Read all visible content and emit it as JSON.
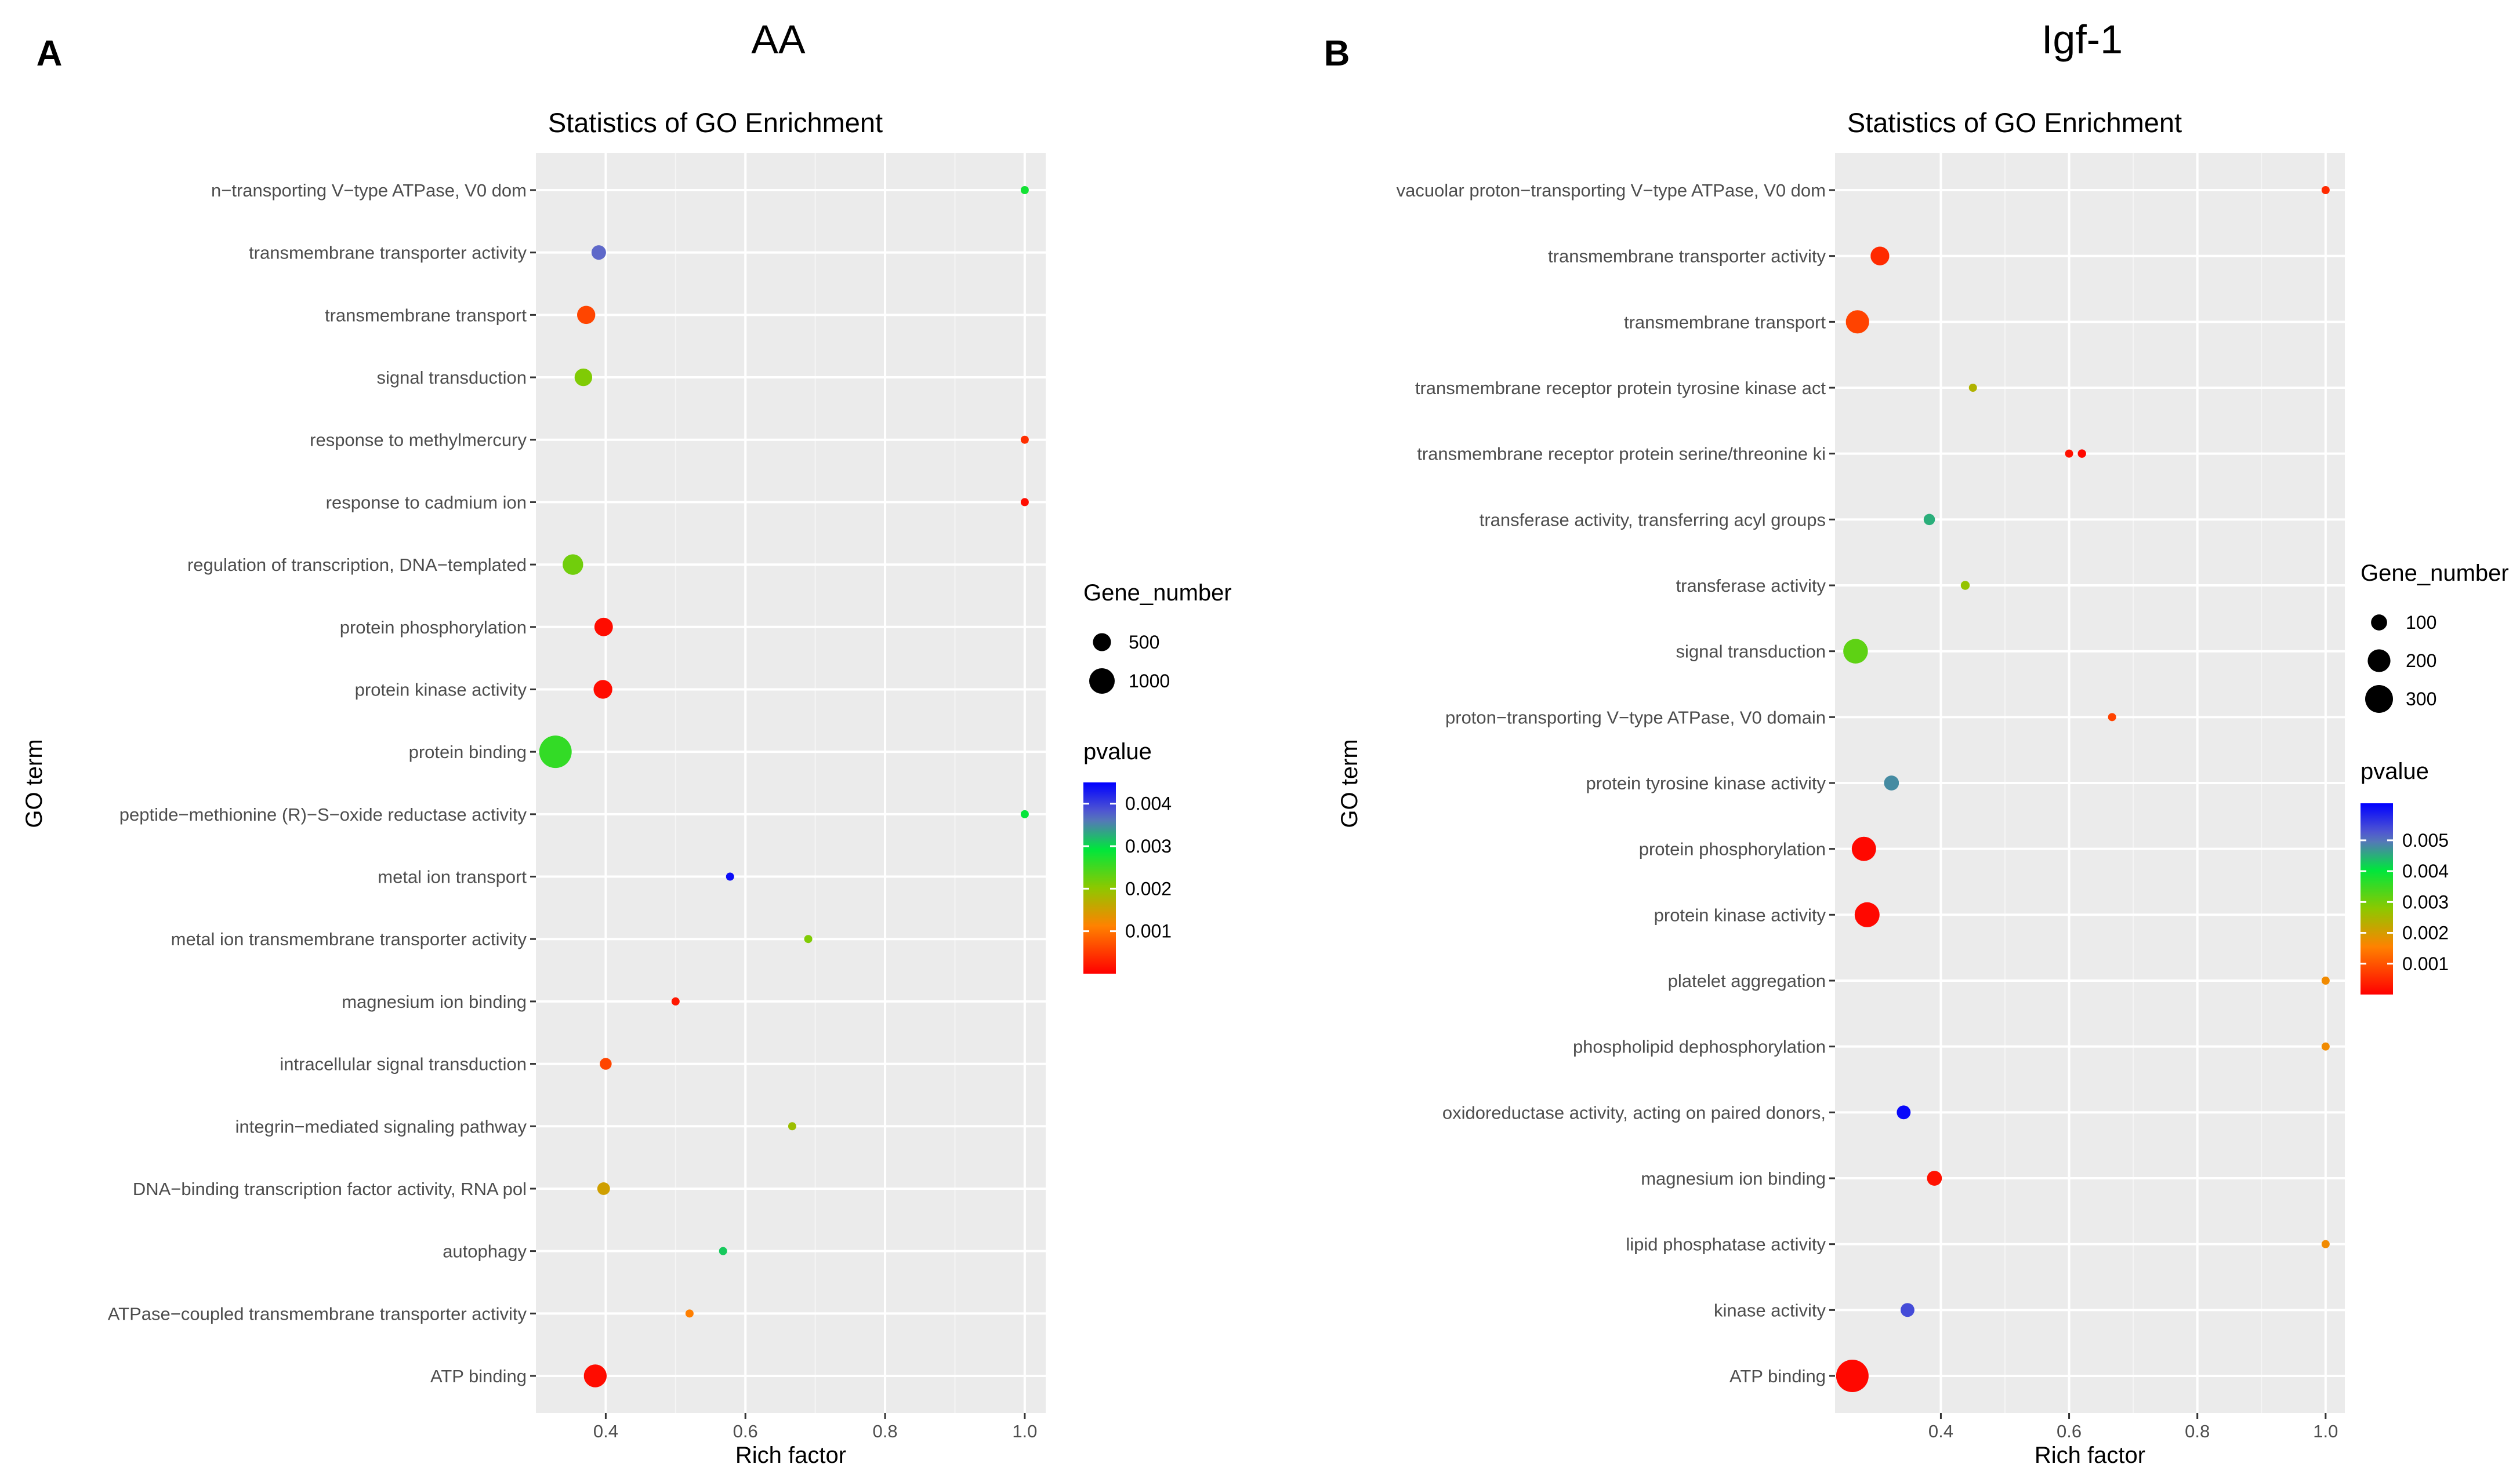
{
  "chart_data": [
    {
      "type": "scatter",
      "panel_label": "A",
      "panel_title": "AA",
      "title": "Statistics of GO Enrichment",
      "xlabel": "Rich factor",
      "ylabel": "GO term",
      "xlim": [
        0.3,
        1.03
      ],
      "xticks": [
        0.4,
        0.6,
        0.8,
        1.0
      ],
      "xtick_labels": [
        "0.4",
        "0.6",
        "0.8",
        "1.0"
      ],
      "size_legend": {
        "title": "Gene_number",
        "values": [
          500,
          1000
        ],
        "labels": [
          "500",
          "1000"
        ]
      },
      "color_legend": {
        "title": "pvalue",
        "min": 0,
        "max": 0.0045,
        "ticks": [
          0.004,
          0.003,
          0.002,
          0.001
        ],
        "labels": [
          "0.004",
          "0.003",
          "0.002",
          "0.001"
        ]
      },
      "points": [
        {
          "term": "n−transporting V−type ATPase, V0 dom",
          "rich": 1.0,
          "genes": 12,
          "pvalue": 0.0028
        },
        {
          "term": "transmembrane transporter activity",
          "rich": 0.39,
          "genes": 210,
          "pvalue": 0.0037
        },
        {
          "term": "transmembrane transport",
          "rich": 0.372,
          "genes": 330,
          "pvalue": 0.0006
        },
        {
          "term": "signal transduction",
          "rich": 0.368,
          "genes": 310,
          "pvalue": 0.0021
        },
        {
          "term": "response to methylmercury",
          "rich": 1.0,
          "genes": 12,
          "pvalue": 0.0004
        },
        {
          "term": "response to cadmium ion",
          "rich": 1.0,
          "genes": 12,
          "pvalue": 0.0001
        },
        {
          "term": "regulation of transcription, DNA−templated",
          "rich": 0.353,
          "genes": 420,
          "pvalue": 0.0022
        },
        {
          "term": "protein phosphorylation",
          "rich": 0.397,
          "genes": 340,
          "pvalue": 0.0001
        },
        {
          "term": "protein kinase activity",
          "rich": 0.396,
          "genes": 350,
          "pvalue": 0.0001
        },
        {
          "term": "protein binding",
          "rich": 0.328,
          "genes": 1050,
          "pvalue": 0.0026
        },
        {
          "term": "peptide−methionine (R)−S−oxide reductase activity",
          "rich": 1.0,
          "genes": 12,
          "pvalue": 0.0029
        },
        {
          "term": "metal ion transport",
          "rich": 0.578,
          "genes": 22,
          "pvalue": 0.0044
        },
        {
          "term": "metal ion transmembrane transporter activity",
          "rich": 0.69,
          "genes": 25,
          "pvalue": 0.0021
        },
        {
          "term": "magnesium ion binding",
          "rich": 0.5,
          "genes": 50,
          "pvalue": 0.0002
        },
        {
          "term": "intracellular signal transduction",
          "rich": 0.4,
          "genes": 140,
          "pvalue": 0.0006
        },
        {
          "term": "integrin−mediated signaling pathway",
          "rich": 0.667,
          "genes": 25,
          "pvalue": 0.0019
        },
        {
          "term": "DNA−binding transcription factor activity, RNA pol",
          "rich": 0.397,
          "genes": 160,
          "pvalue": 0.0015
        },
        {
          "term": "autophagy",
          "rich": 0.568,
          "genes": 50,
          "pvalue": 0.0031
        },
        {
          "term": "ATPase−coupled transmembrane transporter activity",
          "rich": 0.52,
          "genes": 55,
          "pvalue": 0.0011
        },
        {
          "term": "ATP binding",
          "rich": 0.385,
          "genes": 520,
          "pvalue": 0.0001
        }
      ]
    },
    {
      "type": "scatter",
      "panel_label": "B",
      "panel_title": "Igf-1",
      "title": "Statistics of GO Enrichment",
      "xlabel": "Rich factor",
      "ylabel": "GO term",
      "xlim": [
        0.235,
        1.03
      ],
      "xticks": [
        0.4,
        0.6,
        0.8,
        1.0
      ],
      "xtick_labels": [
        "0.4",
        "0.6",
        "0.8",
        "1.0"
      ],
      "size_legend": {
        "title": "Gene_number",
        "values": [
          100,
          200,
          300
        ],
        "labels": [
          "100",
          "200",
          "300"
        ]
      },
      "color_legend": {
        "title": "pvalue",
        "min": 0,
        "max": 0.0062,
        "ticks": [
          0.005,
          0.004,
          0.003,
          0.002,
          0.001
        ],
        "labels": [
          "0.005",
          "0.004",
          "0.003",
          "0.002",
          "0.001"
        ]
      },
      "points": [
        {
          "term": "vacuolar proton−transporting V−type ATPase, V0 dom",
          "rich": 1.0,
          "genes": 3,
          "pvalue": 0.0005
        },
        {
          "term": "transmembrane transporter activity",
          "rich": 0.305,
          "genes": 110,
          "pvalue": 0.0005
        },
        {
          "term": "transmembrane transport",
          "rich": 0.27,
          "genes": 170,
          "pvalue": 0.0008
        },
        {
          "term": "transmembrane receptor protein tyrosine kinase act",
          "rich": 0.45,
          "genes": 20,
          "pvalue": 0.0024
        },
        {
          "term": "transmembrane receptor protein serine/threonine ki",
          "rich": 0.6,
          "genes": 20,
          "pvalue": 0.0002
        },
        {
          "term": "transmembrane receptor protein serine/threonine ki",
          "rich": 0.62,
          "genes": 22,
          "pvalue": 0.0001
        },
        {
          "term": "transferase activity, transferring acyl groups",
          "rich": 0.382,
          "genes": 40,
          "pvalue": 0.0045
        },
        {
          "term": "transferase activity",
          "rich": 0.438,
          "genes": 25,
          "pvalue": 0.0027
        },
        {
          "term": "signal transduction",
          "rich": 0.267,
          "genes": 190,
          "pvalue": 0.0032
        },
        {
          "term": "proton−transporting V−type ATPase, V0 domain",
          "rich": 0.667,
          "genes": 12,
          "pvalue": 0.0008
        },
        {
          "term": "protein tyrosine kinase activity",
          "rich": 0.323,
          "genes": 70,
          "pvalue": 0.0048
        },
        {
          "term": "protein phosphorylation",
          "rich": 0.28,
          "genes": 185,
          "pvalue": 0.0001
        },
        {
          "term": "protein kinase activity",
          "rich": 0.285,
          "genes": 195,
          "pvalue": 0.0001
        },
        {
          "term": "platelet aggregation",
          "rich": 1.0,
          "genes": 3,
          "pvalue": 0.0017
        },
        {
          "term": "phospholipid dephosphorylation",
          "rich": 1.0,
          "genes": 3,
          "pvalue": 0.0017
        },
        {
          "term": "oxidoreductase activity, acting on paired donors,",
          "rich": 0.342,
          "genes": 60,
          "pvalue": 0.0061
        },
        {
          "term": "magnesium ion binding",
          "rich": 0.39,
          "genes": 70,
          "pvalue": 0.0002
        },
        {
          "term": "lipid phosphatase activity",
          "rich": 1.0,
          "genes": 3,
          "pvalue": 0.0017
        },
        {
          "term": "kinase activity",
          "rich": 0.348,
          "genes": 60,
          "pvalue": 0.0054
        },
        {
          "term": "ATP binding",
          "rich": 0.262,
          "genes": 330,
          "pvalue": 0.0001
        }
      ]
    }
  ]
}
